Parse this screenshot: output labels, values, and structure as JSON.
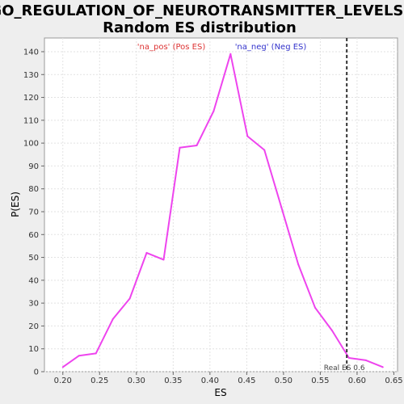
{
  "chart_data": {
    "type": "line",
    "title_line1": "GO_REGULATION_OF_NEUROTRANSMITTER_LEVELS:",
    "title_line2": "Random ES distribution",
    "xlabel": "ES",
    "ylabel": "P(ES)",
    "xlim": [
      0.175,
      0.655
    ],
    "ylim": [
      0,
      146
    ],
    "x_ticks": [
      0.2,
      0.25,
      0.3,
      0.35,
      0.4,
      0.45,
      0.5,
      0.55,
      0.6,
      0.65
    ],
    "x_tick_labels": [
      "0.20",
      "0.25",
      "0.30",
      "0.35",
      "0.40",
      "0.45",
      "0.50",
      "0.55",
      "0.60",
      "0.65"
    ],
    "y_ticks": [
      0,
      10,
      20,
      30,
      40,
      50,
      60,
      70,
      80,
      90,
      100,
      110,
      120,
      130,
      140
    ],
    "y_tick_labels": [
      "0",
      "10",
      "20",
      "30",
      "40",
      "50",
      "60",
      "70",
      "80",
      "90",
      "100",
      "110",
      "120",
      "130",
      "140"
    ],
    "grid": true,
    "series": [
      {
        "color": "#ee44ee",
        "x": [
          0.2,
          0.222,
          0.245,
          0.268,
          0.291,
          0.314,
          0.337,
          0.359,
          0.382,
          0.405,
          0.428,
          0.451,
          0.474,
          0.497,
          0.52,
          0.543,
          0.566,
          0.589,
          0.612,
          0.635
        ],
        "y": [
          2,
          7,
          8,
          23,
          32,
          52,
          49,
          98,
          99,
          114,
          139,
          103,
          97,
          72,
          47,
          28,
          18,
          6,
          5,
          2
        ]
      }
    ],
    "legend": {
      "placement": "top",
      "pos_label": "'na_pos' (Pos ES)",
      "pos_color": "#dd3333",
      "neg_label": "'na_neg' (Neg ES)",
      "neg_color": "#3333cc"
    },
    "real_es": {
      "value": 0.586,
      "label": "Real ES 0.6",
      "color": "#333333"
    }
  }
}
